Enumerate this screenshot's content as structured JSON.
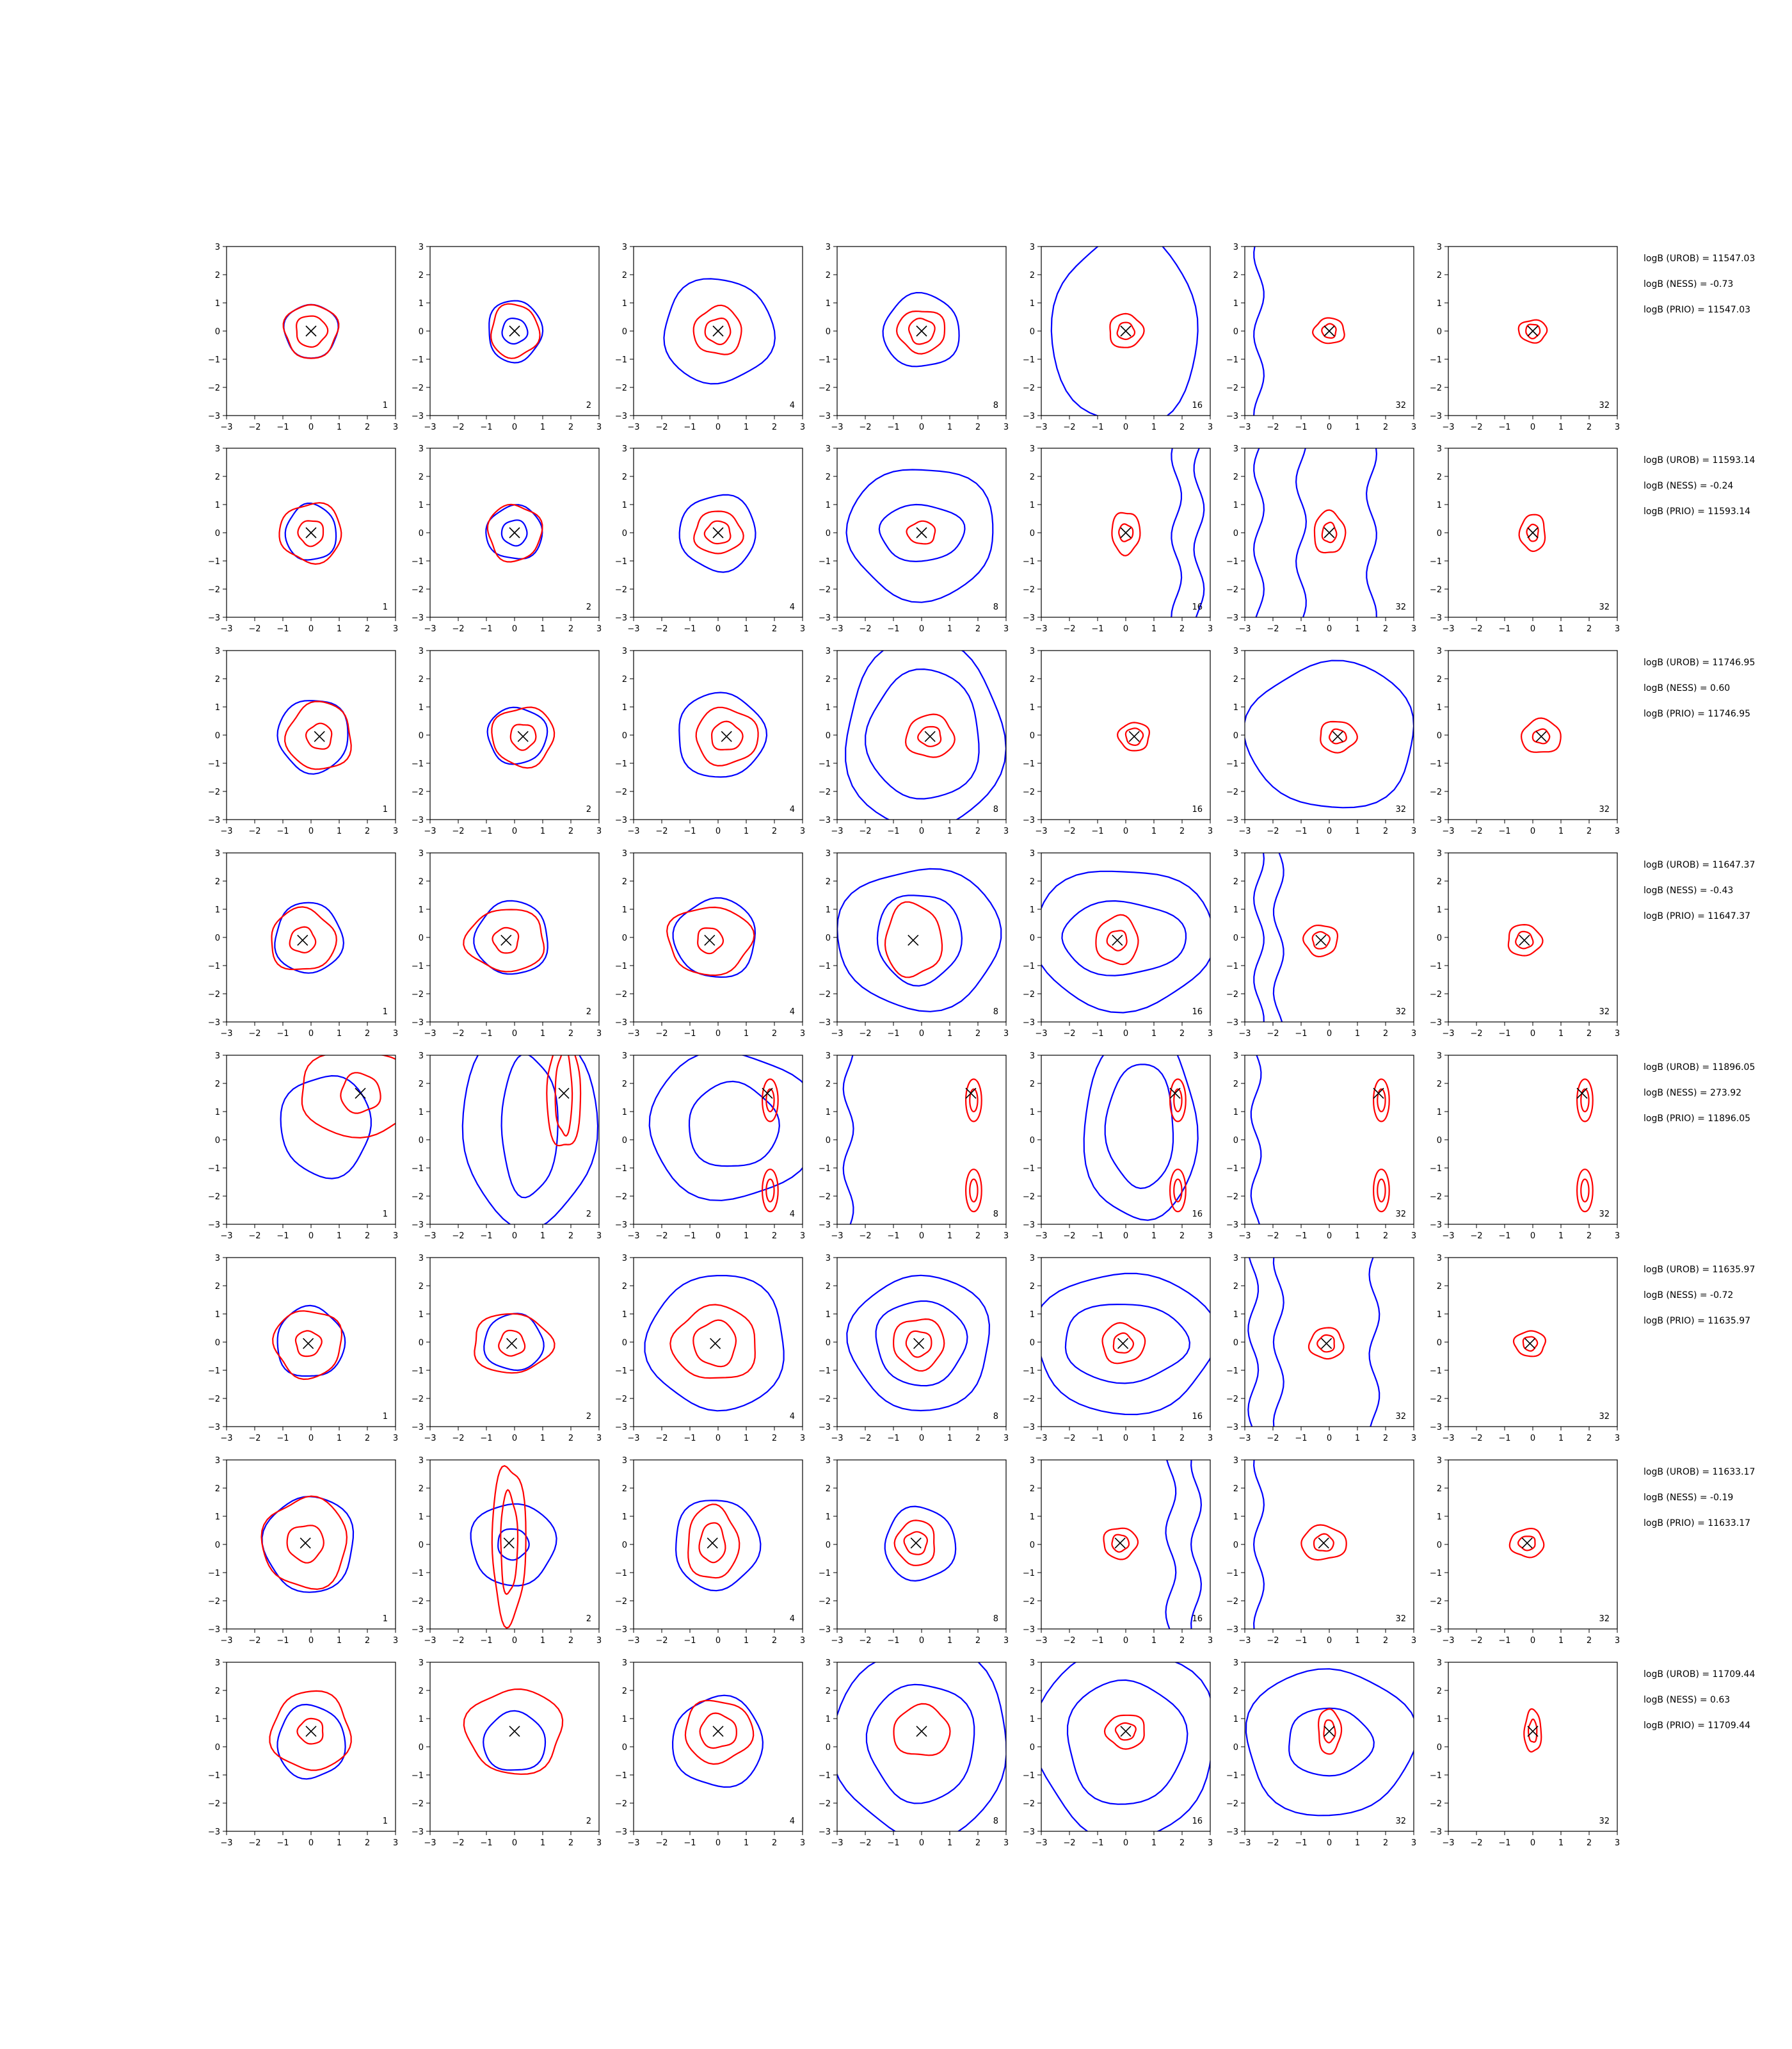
{
  "axis_ticks": [
    "−3",
    "−2",
    "−1",
    "0",
    "1",
    "2",
    "3"
  ],
  "colors": {
    "series_a": "#0000ff",
    "series_b": "#ff0000",
    "marker": "#000000"
  },
  "chart_data": {
    "type": "contour",
    "grid": {
      "rows": 8,
      "cols": 7
    },
    "xlim": [
      -3,
      3
    ],
    "ylim": [
      -3,
      3
    ],
    "panel_labels": [
      "1",
      "2",
      "4",
      "8",
      "16",
      "32",
      "32"
    ],
    "rows": [
      {
        "annotations": [
          "logB (UROB) = 11547.03",
          "logB (NESS) = -0.73",
          "logB (PRIO) = 11547.03"
        ],
        "marker": [
          0.0,
          0.0
        ],
        "panels": [
          {
            "blue": [
              [
                0.95,
                0.95
              ]
            ],
            "red": [
              [
                0.95,
                0.95
              ],
              [
                0.55,
                0.55
              ]
            ]
          },
          {
            "blue": [
              [
                0.95,
                1.1
              ],
              [
                0.45,
                0.45
              ]
            ],
            "red": [
              [
                0.85,
                0.95
              ]
            ]
          },
          {
            "blue": [
              [
                1.95,
                1.85
              ]
            ],
            "red": [
              [
                0.85,
                0.85
              ],
              [
                0.45,
                0.45
              ]
            ]
          },
          {
            "blue": [
              [
                1.35,
                1.3
              ]
            ],
            "red": [
              [
                0.85,
                0.75
              ],
              [
                0.45,
                0.45
              ]
            ]
          },
          {
            "blue": [
              [
                2.6,
                3.4
              ],
              [
                4.4,
                4.6
              ]
            ],
            "red": [
              [
                0.6,
                0.6
              ],
              [
                0.3,
                0.3
              ]
            ]
          },
          {
            "blue_vertical": [
              -2.5
            ],
            "red": [
              [
                0.55,
                0.45
              ],
              [
                0.25,
                0.25
              ]
            ]
          },
          {
            "red": [
              [
                0.5,
                0.4
              ],
              [
                0.25,
                0.25
              ]
            ]
          }
        ]
      },
      {
        "annotations": [
          "logB (UROB) = 11593.14",
          "logB (NESS) = -0.24",
          "logB (PRIO) = 11593.14"
        ],
        "marker": [
          0.0,
          0.0
        ],
        "panels": [
          {
            "blue": [
              [
                0.9,
                1.0
              ]
            ],
            "red": [
              [
                1.1,
                1.05
              ],
              [
                0.45,
                0.45
              ]
            ]
          },
          {
            "blue": [
              [
                1.0,
                0.95
              ],
              [
                0.45,
                0.45
              ]
            ],
            "red": [
              [
                0.95,
                1.0
              ]
            ]
          },
          {
            "blue": [
              [
                1.35,
                1.35
              ]
            ],
            "red": [
              [
                0.85,
                0.75
              ],
              [
                0.45,
                0.4
              ]
            ]
          },
          {
            "blue": [
              [
                2.6,
                2.35
              ],
              [
                1.5,
                1.0
              ]
            ],
            "red": [
              [
                0.5,
                0.4
              ]
            ]
          },
          {
            "blue_vertical": [
              1.8,
              2.6
            ],
            "red": [
              [
                0.5,
                0.75
              ],
              [
                0.25,
                0.3
              ]
            ]
          },
          {
            "blue_vertical": [
              -2.5,
              -1.0,
              1.5
            ],
            "red": [
              [
                0.55,
                0.75
              ],
              [
                0.25,
                0.35
              ]
            ]
          },
          {
            "red": [
              [
                0.45,
                0.65
              ],
              [
                0.2,
                0.3
              ]
            ]
          }
        ]
      },
      {
        "annotations": [
          "logB (UROB) = 11746.95",
          "logB (NESS) = 0.60",
          "logB (PRIO) = 11746.95"
        ],
        "marker": [
          0.3,
          -0.05
        ],
        "panels": [
          {
            "blue": [
              [
                1.25,
                1.3
              ]
            ],
            "red": [
              [
                1.15,
                1.2
              ],
              [
                0.45,
                0.45
              ]
            ]
          },
          {
            "blue": [
              [
                1.05,
                1.0
              ]
            ],
            "red": [
              [
                1.1,
                1.05
              ],
              [
                0.45,
                0.45
              ]
            ]
          },
          {
            "blue": [
              [
                1.55,
                1.5
              ]
            ],
            "red": [
              [
                1.1,
                1.0
              ],
              [
                0.55,
                0.5
              ]
            ]
          },
          {
            "blue": [
              [
                2.8,
                3.4
              ],
              [
                2.0,
                2.3
              ]
            ],
            "red": [
              [
                0.85,
                0.75
              ],
              [
                0.4,
                0.35
              ]
            ]
          },
          {
            "blue_vertical": [
              -3.2
            ],
            "red": [
              [
                0.55,
                0.5
              ],
              [
                0.3,
                0.3
              ]
            ]
          },
          {
            "blue": [
              [
                3.0,
                2.6
              ]
            ],
            "red": [
              [
                0.65,
                0.55
              ],
              [
                0.3,
                0.25
              ]
            ]
          },
          {
            "red": [
              [
                0.7,
                0.6
              ],
              [
                0.3,
                0.25
              ]
            ]
          }
        ]
      },
      {
        "annotations": [
          "logB (UROB) = 11647.37",
          "logB (NESS) = -0.43",
          "logB (PRIO) = 11647.37"
        ],
        "marker": [
          -0.3,
          -0.1
        ],
        "panels": [
          {
            "blue": [
              [
                1.2,
                1.25
              ]
            ],
            "red": [
              [
                1.15,
                1.1
              ],
              [
                0.45,
                0.45
              ]
            ]
          },
          {
            "blue": [
              [
                1.3,
                1.3
              ]
            ],
            "red": [
              [
                1.4,
                1.1
              ],
              [
                0.45,
                0.45
              ]
            ]
          },
          {
            "blue": [
              [
                1.45,
                1.4
              ]
            ],
            "red": [
              [
                1.5,
                1.2
              ],
              [
                0.45,
                0.45
              ]
            ]
          },
          {
            "blue": [
              [
                2.9,
                2.5
              ],
              [
                1.5,
                1.6
              ]
            ],
            "red": [
              [
                1.0,
                1.3
              ]
            ]
          },
          {
            "blue": [
              [
                3.2,
                2.5
              ],
              [
                2.2,
                1.3
              ]
            ],
            "red": [
              [
                0.75,
                0.85
              ],
              [
                0.35,
                0.35
              ]
            ]
          },
          {
            "blue_vertical": [
              -2.5,
              -1.8
            ],
            "red": [
              [
                0.6,
                0.55
              ],
              [
                0.3,
                0.3
              ]
            ]
          },
          {
            "red": [
              [
                0.6,
                0.55
              ],
              [
                0.3,
                0.3
              ]
            ]
          }
        ]
      },
      {
        "annotations": [
          "logB (UROB) = 11896.05",
          "logB (NESS) = 273.92",
          "logB (PRIO) = 11896.05"
        ],
        "marker": [
          1.75,
          1.65
        ],
        "panels": [
          {
            "blue": [
              [
                1.6,
                1.8
              ]
            ],
            "red": [
              [
                2.2,
                1.5
              ],
              [
                0.7,
                0.7
              ]
            ]
          },
          {
            "blue": [
              [
                2.4,
                3.5
              ],
              [
                1.0,
                2.5
              ]
            ],
            "red": [
              [
                0.6,
                2.0
              ],
              [
                0.3,
                1.5
              ]
            ]
          },
          {
            "blue": [
              [
                3.0,
                2.6
              ],
              [
                1.6,
                1.5
              ]
            ],
            "red_pair": true
          },
          {
            "blue_vertical": [
              -2.6
            ],
            "red_pair": true
          },
          {
            "blue": [
              [
                2.0,
                3.4
              ],
              [
                1.2,
                2.2
              ]
            ],
            "red_pair": true
          },
          {
            "blue_vertical": [
              -2.6
            ],
            "red_pair": true
          },
          {
            "red_pair": true
          }
        ]
      },
      {
        "annotations": [
          "logB (UROB) = 11635.97",
          "logB (NESS) = -0.72",
          "logB (PRIO) = 11635.97"
        ],
        "marker": [
          -0.1,
          -0.05
        ],
        "panels": [
          {
            "blue": [
              [
                1.2,
                1.25
              ]
            ],
            "red": [
              [
                1.2,
                1.2
              ],
              [
                0.45,
                0.45
              ]
            ]
          },
          {
            "blue": [
              [
                1.05,
                1.0
              ]
            ],
            "red": [
              [
                1.4,
                1.05
              ],
              [
                0.45,
                0.45
              ]
            ]
          },
          {
            "blue": [
              [
                2.45,
                2.4
              ]
            ],
            "red": [
              [
                1.5,
                1.3
              ],
              [
                0.75,
                0.8
              ]
            ]
          },
          {
            "blue": [
              [
                2.5,
                2.4
              ],
              [
                1.6,
                1.5
              ]
            ],
            "red": [
              [
                0.9,
                0.9
              ],
              [
                0.45,
                0.45
              ]
            ]
          },
          {
            "blue": [
              [
                3.2,
                2.5
              ],
              [
                2.2,
                1.4
              ]
            ],
            "red": [
              [
                0.75,
                0.7
              ],
              [
                0.35,
                0.35
              ]
            ]
          },
          {
            "blue_vertical": [
              -2.7,
              -1.8,
              1.6
            ],
            "red": [
              [
                0.6,
                0.55
              ],
              [
                0.3,
                0.3
              ]
            ]
          },
          {
            "red": [
              [
                0.55,
                0.45
              ],
              [
                0.25,
                0.25
              ]
            ]
          }
        ]
      },
      {
        "annotations": [
          "logB (UROB) = 11633.17",
          "logB (NESS) = -0.19",
          "logB (PRIO) = 11633.17"
        ],
        "marker": [
          -0.2,
          0.05
        ],
        "panels": [
          {
            "blue": [
              [
                1.6,
                1.7
              ]
            ],
            "red": [
              [
                1.5,
                1.6
              ],
              [
                0.65,
                0.65
              ]
            ]
          },
          {
            "blue": [
              [
                1.5,
                1.45
              ],
              [
                0.55,
                0.55
              ]
            ],
            "red": [
              [
                0.6,
                2.8
              ],
              [
                0.3,
                1.8
              ]
            ]
          },
          {
            "blue": [
              [
                1.5,
                1.6
              ]
            ],
            "red": [
              [
                0.9,
                1.3
              ],
              [
                0.45,
                0.7
              ]
            ]
          },
          {
            "blue": [
              [
                1.25,
                1.3
              ]
            ],
            "red": [
              [
                0.7,
                0.8
              ],
              [
                0.4,
                0.4
              ]
            ]
          },
          {
            "blue_vertical": [
              1.6,
              2.5
            ],
            "red": [
              [
                0.6,
                0.55
              ],
              [
                0.3,
                0.3
              ]
            ]
          },
          {
            "blue_vertical": [
              -2.5
            ],
            "red": [
              [
                0.8,
                0.6
              ],
              [
                0.35,
                0.3
              ]
            ]
          },
          {
            "red": [
              [
                0.6,
                0.5
              ],
              [
                0.3,
                0.25
              ]
            ]
          }
        ]
      },
      {
        "annotations": [
          "logB (UROB) = 11709.44",
          "logB (NESS) = 0.63",
          "logB (PRIO) = 11709.44"
        ],
        "marker": [
          0.0,
          0.55
        ],
        "panels": [
          {
            "blue": [
              [
                1.2,
                1.3
              ]
            ],
            "red": [
              [
                1.4,
                1.4
              ],
              [
                0.45,
                0.45
              ]
            ]
          },
          {
            "blue": [
              [
                1.1,
                1.05
              ]
            ],
            "red": [
              [
                1.7,
                1.5
              ]
            ]
          },
          {
            "blue": [
              [
                1.6,
                1.6
              ]
            ],
            "red": [
              [
                1.2,
                1.1
              ],
              [
                0.65,
                0.6
              ]
            ]
          },
          {
            "blue": [
              [
                3.1,
                3.4
              ],
              [
                1.9,
                2.1
              ]
            ],
            "red": [
              [
                1.0,
                0.9
              ]
            ]
          },
          {
            "blue": [
              [
                3.2,
                3.4
              ],
              [
                2.1,
                2.2
              ]
            ],
            "red": [
              [
                0.7,
                0.6
              ],
              [
                0.35,
                0.3
              ]
            ]
          },
          {
            "blue": [
              [
                3.0,
                2.6
              ],
              [
                1.5,
                1.2
              ]
            ],
            "red": [
              [
                0.4,
                0.8
              ],
              [
                0.2,
                0.4
              ]
            ]
          },
          {
            "red": [
              [
                0.3,
                0.75
              ],
              [
                0.15,
                0.4
              ]
            ]
          }
        ]
      }
    ]
  }
}
